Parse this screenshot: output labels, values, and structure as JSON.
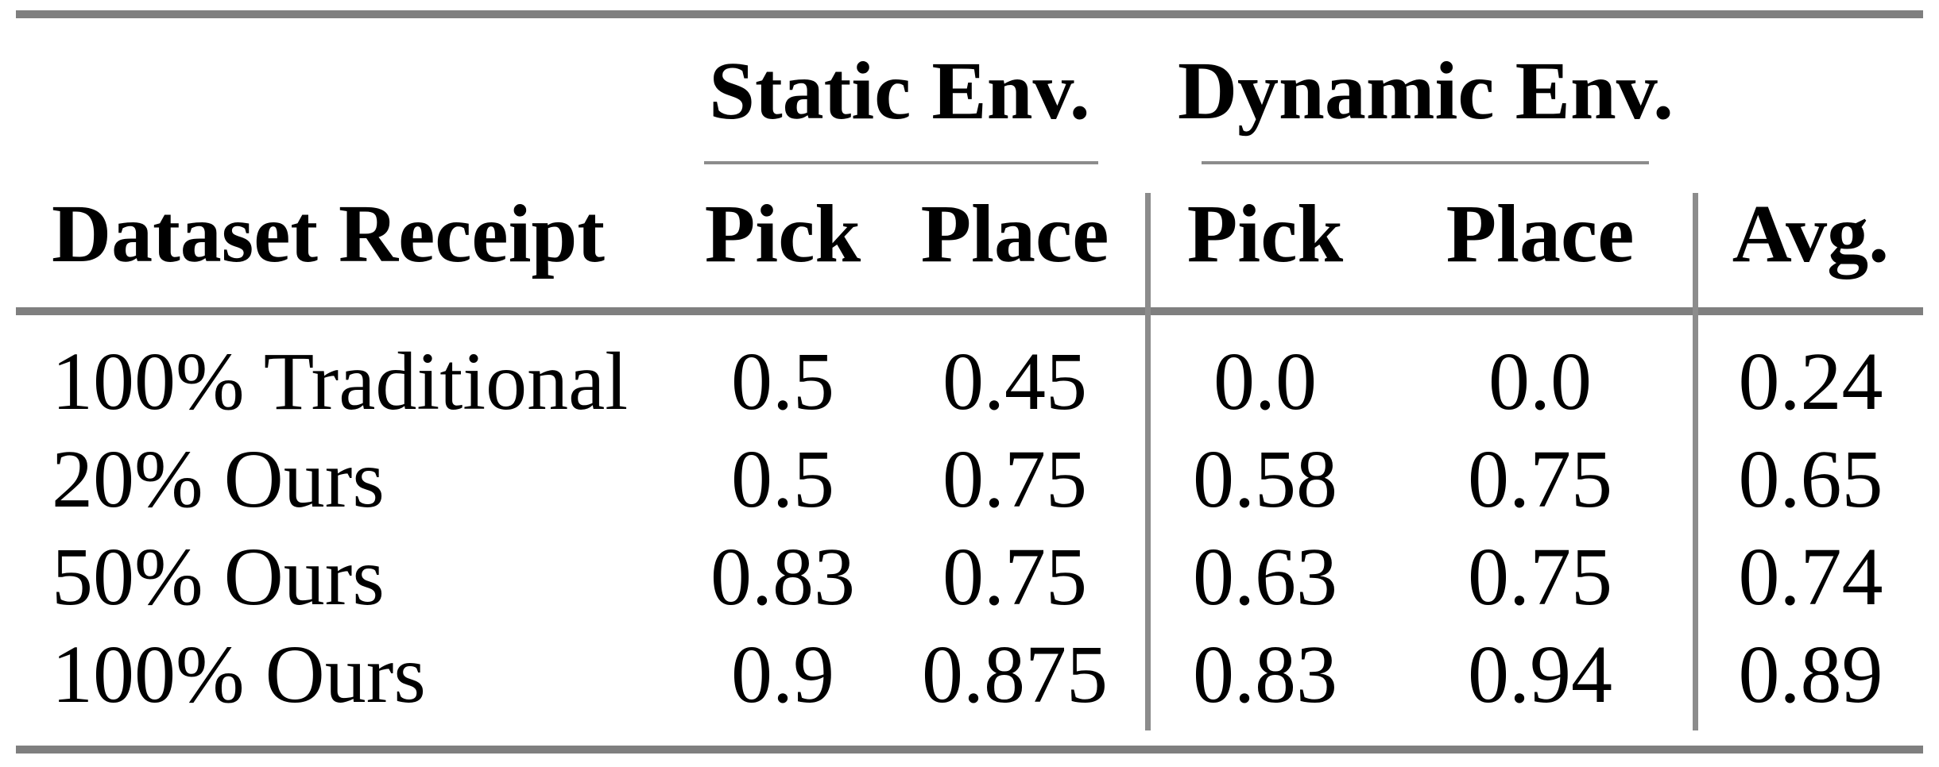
{
  "table": {
    "groups": [
      {
        "label": "Static Env."
      },
      {
        "label": "Dynamic Env."
      }
    ],
    "headers": [
      "Dataset Receipt",
      "Pick",
      "Place",
      "Pick",
      "Place",
      "Avg."
    ],
    "rows": [
      {
        "cells": [
          "100% Traditional",
          "0.5",
          "0.45",
          "0.0",
          "0.0",
          "0.24"
        ]
      },
      {
        "cells": [
          "20% Ours",
          "0.5",
          "0.75",
          "0.58",
          "0.75",
          "0.65"
        ]
      },
      {
        "cells": [
          "50% Ours",
          "0.83",
          "0.75",
          "0.63",
          "0.75",
          "0.74"
        ]
      },
      {
        "cells": [
          "100% Ours",
          "0.9",
          "0.875",
          "0.83",
          "0.94",
          "0.89"
        ]
      }
    ]
  },
  "chart_data": {
    "type": "table",
    "column_groups": [
      {
        "label": "Static Env.",
        "spans": [
          "Pick",
          "Place"
        ]
      },
      {
        "label": "Dynamic Env.",
        "spans": [
          "Pick",
          "Place"
        ]
      }
    ],
    "columns": [
      "Dataset Receipt",
      "Static Pick",
      "Static Place",
      "Dynamic Pick",
      "Dynamic Place",
      "Avg."
    ],
    "rows": [
      [
        "100% Traditional",
        0.5,
        0.45,
        0.0,
        0.0,
        0.24
      ],
      [
        "20% Ours",
        0.5,
        0.75,
        0.58,
        0.75,
        0.65
      ],
      [
        "50% Ours",
        0.83,
        0.75,
        0.63,
        0.75,
        0.74
      ],
      [
        "100% Ours",
        0.9,
        0.875,
        0.83,
        0.94,
        0.89
      ]
    ]
  },
  "colors": {
    "thick_rule": "#7f7f7f",
    "thin_rule": "#8c8c8c",
    "text": "#000000",
    "background": "#ffffff"
  }
}
